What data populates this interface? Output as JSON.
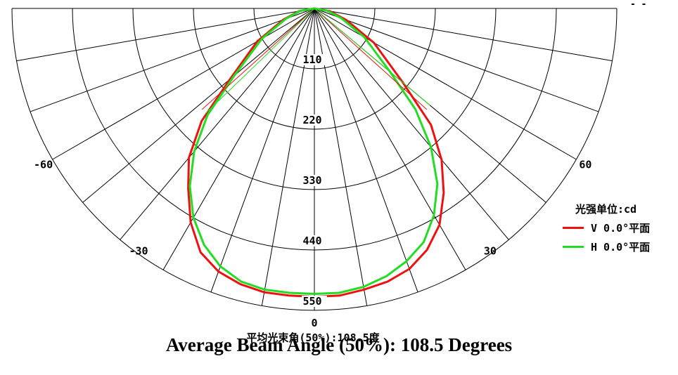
{
  "chart_data": {
    "type": "polar",
    "unit_label": "光强单位:cd",
    "radial_ticks": [
      "110",
      "220",
      "330",
      "440",
      "550"
    ],
    "radial_max": 550,
    "angle_labels": [
      {
        "angle": -60,
        "label": "-60"
      },
      {
        "angle": -30,
        "label": "-30"
      },
      {
        "angle": 0,
        "label": "0"
      },
      {
        "angle": 30,
        "label": "30"
      },
      {
        "angle": 60,
        "label": "60"
      }
    ],
    "angle_step": 10,
    "angle_range": [
      -90,
      90
    ],
    "series": [
      {
        "name": "V 0.0°平面",
        "color": "#ee1111",
        "angles": [
          -90,
          -80,
          -70,
          -60,
          -50,
          -45,
          -40,
          -35,
          -30,
          -25,
          -20,
          -15,
          -10,
          -5,
          0,
          5,
          10,
          15,
          20,
          25,
          30,
          35,
          40,
          45,
          50,
          60,
          70,
          80,
          90
        ],
        "values": [
          0,
          28,
          60,
          120,
          200,
          290,
          355,
          400,
          450,
          490,
          510,
          520,
          525,
          525,
          525,
          525,
          520,
          515,
          505,
          485,
          455,
          410,
          360,
          300,
          210,
          125,
          62,
          28,
          0
        ]
      },
      {
        "name": "H 0.0°平面",
        "color": "#22dd22",
        "angles": [
          -90,
          -80,
          -70,
          -60,
          -50,
          -45,
          -40,
          -35,
          -30,
          -25,
          -20,
          -15,
          -10,
          -5,
          0,
          5,
          10,
          15,
          20,
          25,
          30,
          35,
          40,
          45,
          50,
          60,
          70,
          80,
          90
        ],
        "values": [
          0,
          26,
          55,
          110,
          190,
          275,
          340,
          395,
          440,
          475,
          500,
          515,
          520,
          520,
          520,
          520,
          515,
          505,
          490,
          470,
          435,
          390,
          330,
          260,
          180,
          105,
          52,
          24,
          0
        ]
      }
    ]
  },
  "beam_label": "平均光束角(50%):108.5度",
  "caption": "Average Beam Angle (50%): 108.5 Degrees",
  "corner_mark": "- -"
}
